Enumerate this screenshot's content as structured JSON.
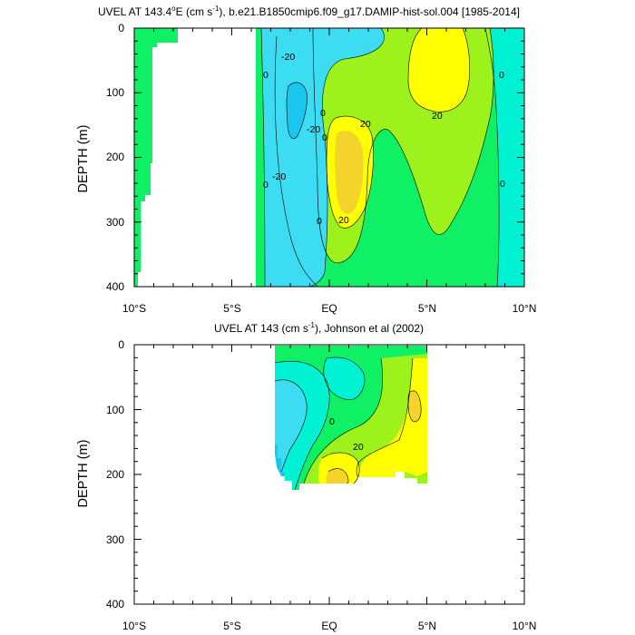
{
  "chart_data": [
    {
      "type": "contour",
      "title_main": "UVEL AT 143.4",
      "title_sup1": "o",
      "title_mid": "E (cm s",
      "title_sup2": "-1",
      "title_tail": "), b.e21.B1850cmip6.f09_g17.DAMIP-hist-sol.004 [1985-2014]",
      "ylabel": "DEPTH (m)",
      "x_ticks": [
        "10°S",
        "5°S",
        "EQ",
        "5°N",
        "10°N"
      ],
      "x_tick_values": [
        -10,
        -5,
        0,
        5,
        10
      ],
      "y_ticks": [
        "0",
        "100",
        "200",
        "300",
        "400"
      ],
      "y_tick_values": [
        0,
        100,
        200,
        300,
        400
      ],
      "xlim": [
        -10,
        10
      ],
      "ylim": [
        0,
        400
      ],
      "y_reversed": true,
      "contour_labels": [
        "0",
        "-20",
        "0",
        "-20",
        "-20",
        "0",
        "20",
        "20",
        "0",
        "0",
        "20",
        "0",
        "0"
      ],
      "features": [
        {
          "name": "westward-core",
          "sign": "negative",
          "lat": -1.8,
          "depth": 140,
          "min_level": -40
        },
        {
          "name": "equatorial-undercurrent",
          "sign": "positive",
          "lat": 1.1,
          "depth": 200,
          "max_level": 40
        },
        {
          "name": "northern-countercurrent",
          "sign": "positive",
          "lat": 5.2,
          "depth": 60,
          "max_level": 40
        }
      ]
    },
    {
      "type": "contour",
      "title_main": "UVEL AT 143 (cm s",
      "title_sup1": "-1",
      "title_tail": "), Johnson et al (2002)",
      "ylabel": "DEPTH (m)",
      "x_ticks": [
        "10°S",
        "5°S",
        "EQ",
        "5°N",
        "10°N"
      ],
      "x_tick_values": [
        -10,
        -5,
        0,
        5,
        10
      ],
      "y_ticks": [
        "0",
        "100",
        "200",
        "300",
        "400"
      ],
      "y_tick_values": [
        0,
        100,
        200,
        300,
        400
      ],
      "xlim": [
        -10,
        10
      ],
      "ylim": [
        0,
        400
      ],
      "y_reversed": true,
      "data_extent": {
        "lat": [
          -2.7,
          5.0
        ],
        "depth": [
          0,
          220
        ]
      },
      "contour_labels": [
        "0",
        "20"
      ],
      "features": [
        {
          "name": "equatorial-undercurrent",
          "sign": "positive",
          "lat": 0.5,
          "depth": 195,
          "max_level": 40
        },
        {
          "name": "ncc-core",
          "sign": "positive",
          "lat": 4.2,
          "depth": 100,
          "max_level": 40
        },
        {
          "name": "westward-flow",
          "sign": "negative",
          "lat": -1.5,
          "depth": 130,
          "min_level": -40
        }
      ]
    }
  ],
  "palette": {
    "cyan_dark": "#18c6f0",
    "cyan": "#3cdcf2",
    "aqua": "#00f2d2",
    "green": "#0ff064",
    "yellow_green": "#9df21c",
    "yellow": "#ffff00",
    "gold": "#f4d42a"
  }
}
